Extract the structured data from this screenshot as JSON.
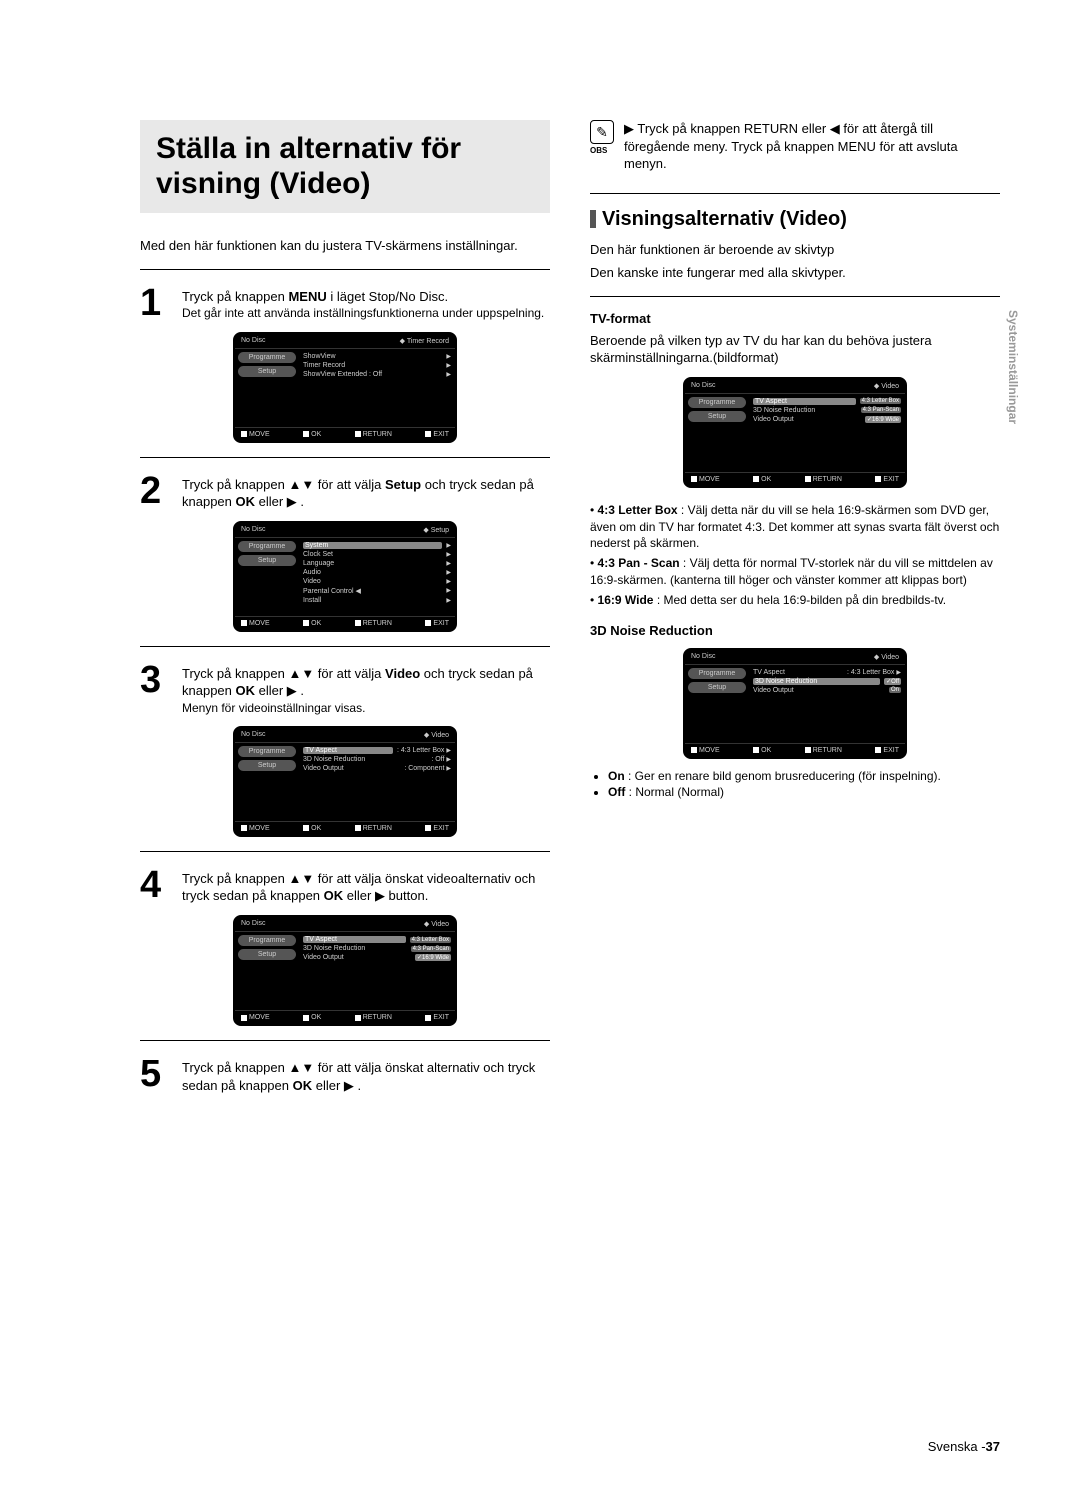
{
  "title": "Ställa in alternativ för visning (Video)",
  "intro": "Med den här funktionen kan du justera TV-skärmens inställningar.",
  "steps": {
    "s1": {
      "num": "1",
      "line1": "Tryck på knappen ",
      "b1": "MENU",
      "line2": " i läget Stop/No Disc.",
      "sub": "Det går inte att använda inställningsfunktionerna under uppspelning."
    },
    "s2": {
      "num": "2",
      "txt": "Tryck på knappen ▲▼ för att välja ",
      "b": "Setup",
      "end": " och tryck sedan på knappen ",
      "b2": "OK",
      "end2": " eller ▶ ."
    },
    "s3": {
      "num": "3",
      "txt": "Tryck på knappen ▲▼ för att välja ",
      "b": "Video",
      "end": " och tryck sedan på knappen ",
      "b2": "OK",
      "end2": " eller ▶ .",
      "sub": "Menyn för videoinställningar visas."
    },
    "s4": {
      "num": "4",
      "txt": "Tryck på knappen ▲▼ för att välja önskat videoalternativ och tryck sedan på knappen ",
      "b": "OK",
      "end": " eller ▶ button."
    },
    "s5": {
      "num": "5",
      "txt": "Tryck på knappen ▲▼ för att välja önskat alternativ och tryck sedan på knappen ",
      "b": "OK",
      "end": " eller ▶ ."
    }
  },
  "note": {
    "lbl": "OBS",
    "bullet": "▶",
    "txt": "Tryck på knappen RETURN eller ◀ för att återgå till föregående meny. Tryck på knappen MENU för att avsluta menyn."
  },
  "section2": {
    "title": "Visningsalternativ (Video)",
    "p1": "Den här funktionen är beroende av skivtyp",
    "p2": "Den kanske inte fungerar med alla skivtyper."
  },
  "tvformat": {
    "h": "TV-format",
    "p": "Beroende på vilken typ av TV du har kan du behöva justera skärminställningarna.(bildformat)"
  },
  "aspects": {
    "a1": {
      "lbl": "4:3 Letter Box",
      "txt": ": Välj detta när du vill se hela 16:9-skärmen som DVD ger, även om din TV har formatet 4:3. Det kommer att synas svarta fält överst och nederst på skärmen."
    },
    "a2": {
      "lbl": "4:3 Pan - Scan",
      "txt": ": Välj detta för normal TV-storlek när du vill se mittdelen av 16:9-skärmen. (kanterna till höger och vänster kommer att klippas bort)"
    },
    "a3": {
      "lbl": "16:9 Wide",
      "txt": ":  Med detta ser du hela 16:9-bilden på din bredbilds-tv."
    }
  },
  "noise": {
    "h": "3D Noise Reduction",
    "on": {
      "lbl": "On",
      "txt": ": Ger en renare bild genom brusreducering (för inspelning)."
    },
    "off": {
      "lbl": "Off",
      "txt": ": Normal (Normal)"
    }
  },
  "osd": {
    "nodisc": "No Disc",
    "move": "MOVE",
    "ok": "OK",
    "ret": "RETURN",
    "exit": "EXIT",
    "prog": "Programme",
    "setup": "Setup",
    "m1": {
      "hdr": "Timer Record",
      "i1": "ShowView",
      "i2": "Timer Record",
      "i3": "ShowView Extended : Off"
    },
    "m2": {
      "hdr": "Setup",
      "i1": "System",
      "i2": "Clock Set",
      "i3": "Language",
      "i4": "Audio",
      "i5": "Video",
      "i6": "Parental Control ◀",
      "i7": "Install"
    },
    "m3": {
      "hdr": "Video",
      "i1": "TV Aspect",
      "v1": ": 4:3 Letter Box",
      "i2": "3D Noise Reduction",
      "v2": ": Off",
      "i3": "Video Output",
      "v3": ": Component"
    },
    "m4": {
      "hdr": "Video",
      "i1": "TV Aspect",
      "i2": "3D Noise Reduction",
      "i3": "Video Output",
      "o1": "4:3 Letter Box",
      "o2": "4:3 Pan-Scan",
      "o3": "16:9 Wide"
    },
    "m6": {
      "hdr": "Video",
      "i1": "TV Aspect",
      "v1": ": 4:3 Letter Box",
      "i2": "3D Noise Reduction",
      "i3": "Video Output",
      "o1": "Off",
      "o2": "On"
    }
  },
  "vtab": "Systeminställningar",
  "page": {
    "lang": "Svenska -",
    "num": "37"
  }
}
